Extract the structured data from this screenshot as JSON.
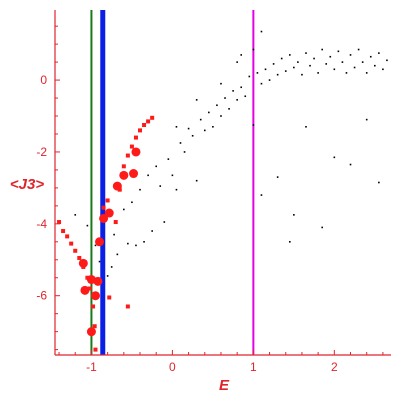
{
  "chart_data": {
    "type": "scatter",
    "title": "",
    "xlabel": "E",
    "ylabel": "<J3>",
    "xlim": [
      -1.45,
      2.7
    ],
    "ylim": [
      -7.65,
      1.95
    ],
    "grid": false,
    "legend": "none",
    "x_ticks": [
      -1,
      0,
      1,
      2
    ],
    "y_ticks": [
      0,
      -2,
      -4,
      -6
    ],
    "x_tick_labels": [
      "-1",
      "0",
      "1",
      "2"
    ],
    "y_tick_labels": [
      "0",
      "-2",
      "-4",
      "-6"
    ],
    "vertical_lines": [
      {
        "x": -1.0,
        "color": "#1a7a1a",
        "width": 2
      },
      {
        "x": -0.86,
        "color": "#0a1ee6",
        "width": 5
      },
      {
        "x": 1.0,
        "color": "#e600e6",
        "width": 2
      }
    ],
    "series": [
      {
        "color": "#000000",
        "marker": "dot",
        "points": [
          [
            -1.2,
            -3.75
          ],
          [
            -1.05,
            -4.05
          ],
          [
            -0.95,
            -4.6
          ],
          [
            -0.9,
            -5.05
          ],
          [
            -0.8,
            -5.45
          ],
          [
            -0.75,
            -5.2
          ],
          [
            -0.72,
            -4.3
          ],
          [
            -0.68,
            -4.85
          ],
          [
            -0.6,
            -3.6
          ],
          [
            -0.55,
            -4.55
          ],
          [
            -0.5,
            -3.4
          ],
          [
            -0.45,
            -4.6
          ],
          [
            -0.4,
            -3.05
          ],
          [
            -0.35,
            -4.5
          ],
          [
            -0.3,
            -2.65
          ],
          [
            -0.25,
            -4.2
          ],
          [
            -0.2,
            -2.4
          ],
          [
            -0.15,
            -2.95
          ],
          [
            -0.1,
            -3.95
          ],
          [
            -0.05,
            -2.2
          ],
          [
            0.0,
            -2.65
          ],
          [
            0.05,
            -3.05
          ],
          [
            0.1,
            -1.75
          ],
          [
            0.15,
            -2.0
          ],
          [
            0.2,
            -1.35
          ],
          [
            0.25,
            -1.55
          ],
          [
            0.3,
            -2.8
          ],
          [
            0.35,
            -1.1
          ],
          [
            0.4,
            -1.4
          ],
          [
            0.45,
            -0.9
          ],
          [
            0.5,
            -1.3
          ],
          [
            0.55,
            -0.7
          ],
          [
            0.6,
            -1.0
          ],
          [
            0.65,
            -0.5
          ],
          [
            0.7,
            -0.8
          ],
          [
            0.75,
            -0.3
          ],
          [
            0.8,
            -0.55
          ],
          [
            0.85,
            -0.2
          ],
          [
            0.9,
            -0.45
          ],
          [
            0.95,
            0.1
          ],
          [
            1.05,
            0.2
          ],
          [
            1.1,
            -0.1
          ],
          [
            1.15,
            0.3
          ],
          [
            1.2,
            0.0
          ],
          [
            1.25,
            0.45
          ],
          [
            1.3,
            0.15
          ],
          [
            1.35,
            0.6
          ],
          [
            1.4,
            0.25
          ],
          [
            1.45,
            0.7
          ],
          [
            1.5,
            0.35
          ],
          [
            1.55,
            0.5
          ],
          [
            1.6,
            0.15
          ],
          [
            1.65,
            0.75
          ],
          [
            1.7,
            0.4
          ],
          [
            1.75,
            0.6
          ],
          [
            1.8,
            0.2
          ],
          [
            1.85,
            0.85
          ],
          [
            1.9,
            0.45
          ],
          [
            1.95,
            0.65
          ],
          [
            2.0,
            0.3
          ],
          [
            2.05,
            0.8
          ],
          [
            2.1,
            0.5
          ],
          [
            2.15,
            0.2
          ],
          [
            2.2,
            0.7
          ],
          [
            2.25,
            0.35
          ],
          [
            2.3,
            0.85
          ],
          [
            2.35,
            0.5
          ],
          [
            2.4,
            0.2
          ],
          [
            2.45,
            0.65
          ],
          [
            2.5,
            0.4
          ],
          [
            2.55,
            0.75
          ],
          [
            2.6,
            0.3
          ],
          [
            2.65,
            0.55
          ],
          [
            1.0,
            -1.25
          ],
          [
            1.1,
            -3.2
          ],
          [
            1.3,
            -2.7
          ],
          [
            1.45,
            -4.5
          ],
          [
            1.65,
            -1.3
          ],
          [
            1.85,
            -4.1
          ],
          [
            2.0,
            -2.15
          ],
          [
            2.2,
            -2.35
          ],
          [
            2.4,
            -1.1
          ],
          [
            2.55,
            -2.85
          ],
          [
            1.5,
            -3.75
          ],
          [
            0.05,
            -1.3
          ],
          [
            0.3,
            -0.55
          ],
          [
            0.6,
            -0.1
          ],
          [
            0.8,
            0.5
          ],
          [
            1.0,
            0.85
          ],
          [
            1.1,
            1.35
          ],
          [
            0.85,
            0.7
          ]
        ]
      },
      {
        "color": "#ff1a1a",
        "marker": "square",
        "points": [
          [
            -1.4,
            -3.95
          ],
          [
            -1.35,
            -4.2
          ],
          [
            -1.3,
            -4.35
          ],
          [
            -1.25,
            -4.55
          ],
          [
            -1.2,
            -4.75
          ],
          [
            -1.15,
            -4.95
          ],
          [
            -1.1,
            -5.2
          ],
          [
            -1.05,
            -5.5
          ],
          [
            -1.02,
            -5.8
          ],
          [
            -0.98,
            -6.3
          ],
          [
            -0.96,
            -6.85
          ],
          [
            -0.95,
            -7.5
          ],
          [
            -0.85,
            -3.55
          ],
          [
            -0.8,
            -3.35
          ],
          [
            -0.7,
            -3.95
          ],
          [
            -0.65,
            -3.05
          ],
          [
            -0.6,
            -2.4
          ],
          [
            -0.55,
            -2.1
          ],
          [
            -0.5,
            -1.85
          ],
          [
            -0.45,
            -1.6
          ],
          [
            -0.4,
            -1.4
          ],
          [
            -0.35,
            -1.25
          ],
          [
            -0.3,
            -1.15
          ],
          [
            -0.25,
            -1.05
          ],
          [
            -0.78,
            -6.05
          ],
          [
            -0.55,
            -6.3
          ]
        ]
      },
      {
        "color": "#ff1a1a",
        "marker": "circle",
        "points": [
          [
            -1.0,
            -7.0
          ],
          [
            -0.95,
            -6.0
          ],
          [
            -1.08,
            -5.85
          ],
          [
            -1.0,
            -5.55
          ],
          [
            -0.92,
            -5.6
          ],
          [
            -1.1,
            -5.1
          ],
          [
            -0.9,
            -4.5
          ],
          [
            -0.85,
            -3.85
          ],
          [
            -0.78,
            -3.7
          ],
          [
            -0.68,
            -2.95
          ],
          [
            -0.6,
            -2.65
          ],
          [
            -0.48,
            -2.6
          ],
          [
            -0.45,
            -2.0
          ]
        ]
      }
    ]
  }
}
